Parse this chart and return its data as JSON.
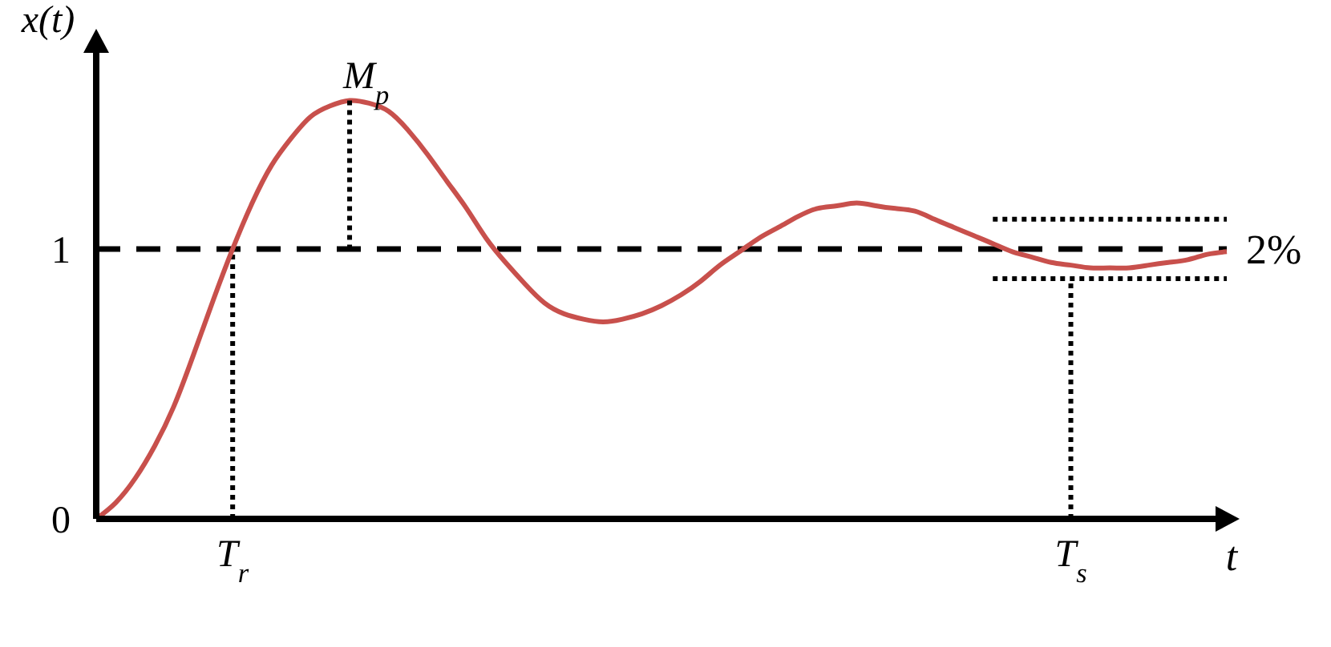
{
  "chart_data": {
    "type": "line",
    "xlabel": "t",
    "ylabel": "x(t)",
    "categories": [
      null,
      null,
      null,
      null,
      null,
      null,
      null,
      "T$_{r}$",
      null,
      null,
      null,
      null,
      null,
      null,
      null,
      null,
      null,
      null,
      null,
      null,
      null,
      null,
      null,
      null,
      null,
      null,
      null,
      null,
      null,
      null,
      null,
      null,
      null,
      null,
      null,
      null,
      null,
      null,
      null,
      null,
      null,
      null,
      null,
      null,
      null,
      null,
      null,
      null,
      null,
      null,
      "T$_{s}$",
      null,
      null,
      null,
      null,
      null,
      null,
      null,
      null
    ],
    "series": [
      {
        "color": "#c8504c",
        "values": [
          0,
          0.06,
          0.15,
          0.27,
          0.42,
          0.61,
          0.81,
          1.0,
          1.17,
          1.31,
          1.41,
          1.49,
          1.53,
          1.55,
          1.54,
          1.51,
          1.44,
          1.35,
          1.25,
          1.15,
          1.04,
          0.95,
          0.87,
          0.8,
          0.76,
          0.74,
          0.73,
          0.74,
          0.76,
          0.79,
          0.83,
          0.88,
          0.94,
          0.99,
          1.04,
          1.08,
          1.12,
          1.15,
          1.16,
          1.17,
          1.16,
          1.15,
          1.14,
          1.11,
          1.08,
          1.05,
          1.02,
          0.99,
          0.97,
          0.95,
          0.94,
          0.93,
          0.93,
          0.93,
          0.94,
          0.95,
          0.96,
          0.98,
          0.99
        ]
      }
    ],
    "ylim": [
      0,
      1.78
    ],
    "yticks": [
      0,
      1
    ],
    "ref_lines": [
      {
        "axis": "y",
        "value": 1,
        "line_style": "dashed",
        "color": "#000000"
      },
      {
        "axis": "y",
        "value": 1.11,
        "line_style": "dotted",
        "color": "#000000"
      },
      {
        "axis": "y",
        "value": 0.89,
        "line_style": "dotted",
        "color": "#000000"
      },
      {
        "axis": "x",
        "value": "T$_{r}$",
        "line_style": "dotted",
        "color": "#000000"
      },
      {
        "axis": "x",
        "value": "T$_{s}$",
        "line_style": "dotted",
        "color": "#000000"
      }
    ],
    "annotations": [
      {
        "text": "M$_{p}$",
        "y": 1.55
      },
      "2%"
    ]
  }
}
